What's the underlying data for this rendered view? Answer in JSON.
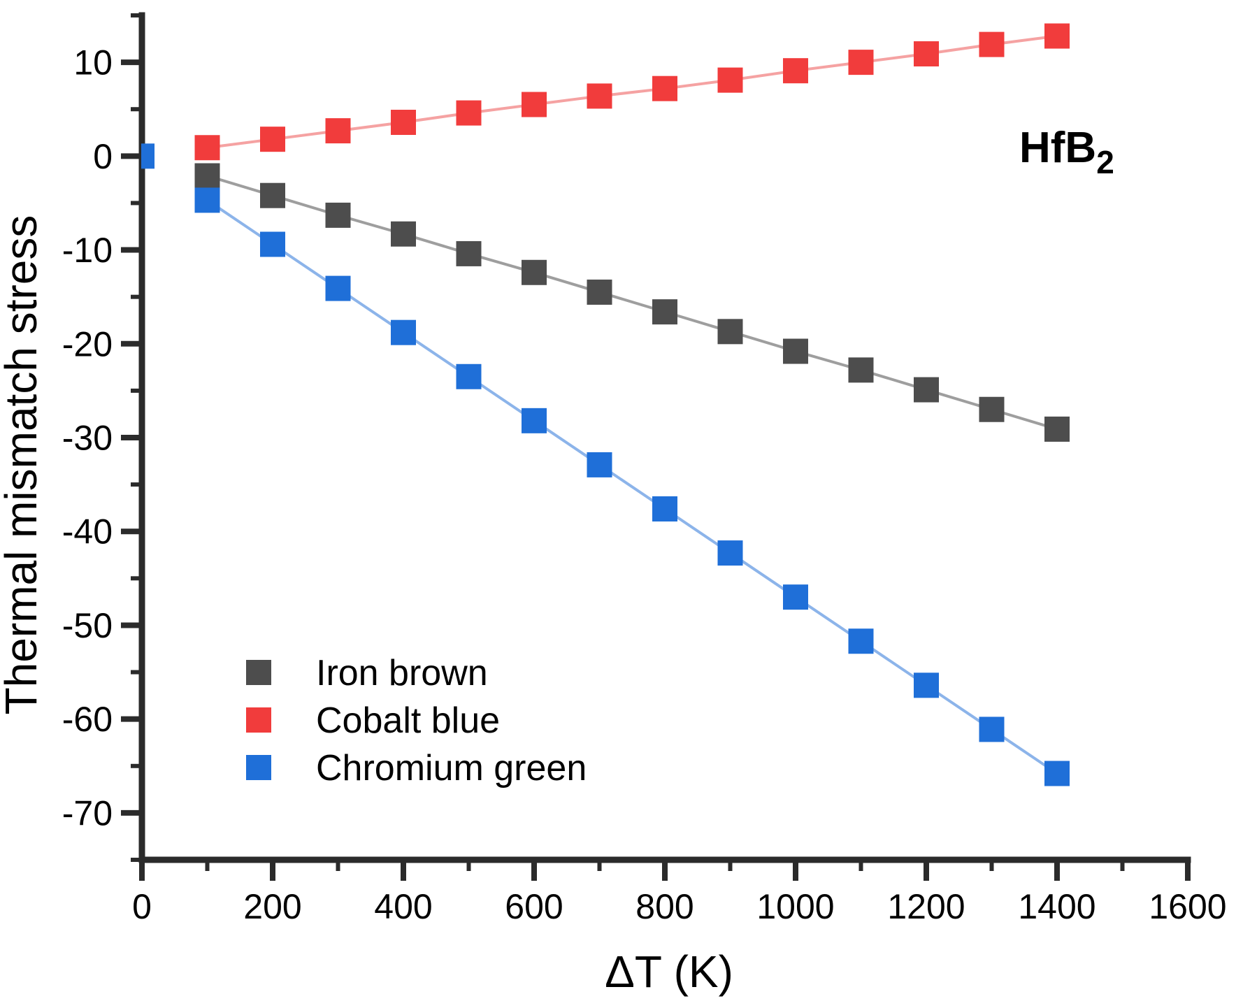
{
  "chart_data": {
    "type": "scatter",
    "title": "",
    "annotation": {
      "text": "HfB",
      "subscript": "2"
    },
    "xlabel": "ΔT (K)",
    "ylabel": "Thermal mismatch stress",
    "xlim": [
      0,
      1600
    ],
    "ylim": [
      -75,
      15
    ],
    "x_major_ticks": [
      0,
      200,
      400,
      600,
      800,
      1000,
      1200,
      1400,
      1600
    ],
    "x_minor_ticks": [
      100,
      300,
      500,
      700,
      900,
      1100,
      1300,
      1500
    ],
    "y_major_ticks": [
      10,
      0,
      -10,
      -20,
      -30,
      -40,
      -50,
      -60,
      -70
    ],
    "y_minor_ticks": [
      15,
      5,
      -5,
      -15,
      -25,
      -35,
      -45,
      -55,
      -65,
      -75
    ],
    "grid": false,
    "legend_position": "inside-lower-left",
    "axis_color": "#2b2b2b",
    "text_color": "#000000",
    "series": [
      {
        "name": "Iron brown",
        "marker_color": "#4d4d4d",
        "line_color": "#9e9e9e",
        "x": [
          100,
          200,
          300,
          400,
          500,
          600,
          700,
          800,
          900,
          1000,
          1100,
          1200,
          1300,
          1400
        ],
        "y": [
          -2.1,
          -4.2,
          -6.3,
          -8.3,
          -10.4,
          -12.4,
          -14.5,
          -16.6,
          -18.7,
          -20.8,
          -22.8,
          -24.9,
          -27.0,
          -29.1
        ]
      },
      {
        "name": "Cobalt blue",
        "marker_color": "#f13c3c",
        "line_color": "#f5a2a2",
        "x": [
          100,
          200,
          300,
          400,
          500,
          600,
          700,
          800,
          900,
          1000,
          1100,
          1200,
          1300,
          1400
        ],
        "y": [
          0.9,
          1.8,
          2.7,
          3.6,
          4.6,
          5.5,
          6.4,
          7.2,
          8.1,
          9.1,
          10.0,
          10.9,
          11.9,
          12.8
        ]
      },
      {
        "name": "Chromium green",
        "marker_color": "#1f6fd8",
        "line_color": "#8cb4ea",
        "x": [
          100,
          200,
          300,
          400,
          500,
          600,
          700,
          800,
          900,
          1000,
          1100,
          1200,
          1300,
          1400
        ],
        "y": [
          -4.7,
          -9.4,
          -14.1,
          -18.8,
          -23.5,
          -28.2,
          -32.9,
          -37.6,
          -42.3,
          -47.0,
          -51.7,
          -56.4,
          -61.1,
          -65.8
        ],
        "extra_point": {
          "x": 0,
          "y": 0,
          "connected": false
        }
      }
    ],
    "legend_items": [
      "Iron brown",
      "Cobalt blue",
      "Chromium green"
    ]
  }
}
